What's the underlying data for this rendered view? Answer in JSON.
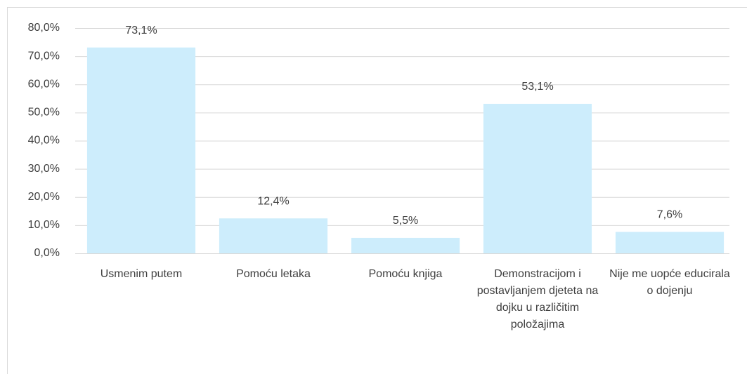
{
  "chart_data": {
    "type": "bar",
    "categories": [
      "Usmenim putem",
      "Pomoću letaka",
      "Pomoću knjiga",
      "Demonstracijom i postavljanjem djeteta na dojku u različitim položajima",
      "Nije me uopće educirala o dojenju"
    ],
    "values": [
      73.1,
      12.4,
      5.5,
      53.1,
      7.6
    ],
    "value_labels": [
      "73,1%",
      "12,4%",
      "5,5%",
      "53,1%",
      "7,6%"
    ],
    "color": "#cdedfc",
    "ylim": [
      0,
      80
    ],
    "yticks": [
      {
        "value": 0,
        "label": "0,0%"
      },
      {
        "value": 10,
        "label": "10,0%"
      },
      {
        "value": 20,
        "label": "20,0%"
      },
      {
        "value": 30,
        "label": "30,0%"
      },
      {
        "value": 40,
        "label": "40,0%"
      },
      {
        "value": 50,
        "label": "50,0%"
      },
      {
        "value": 60,
        "label": "60,0%"
      },
      {
        "value": 70,
        "label": "70,0%"
      },
      {
        "value": 80,
        "label": "80,0%"
      }
    ],
    "grid": true
  }
}
